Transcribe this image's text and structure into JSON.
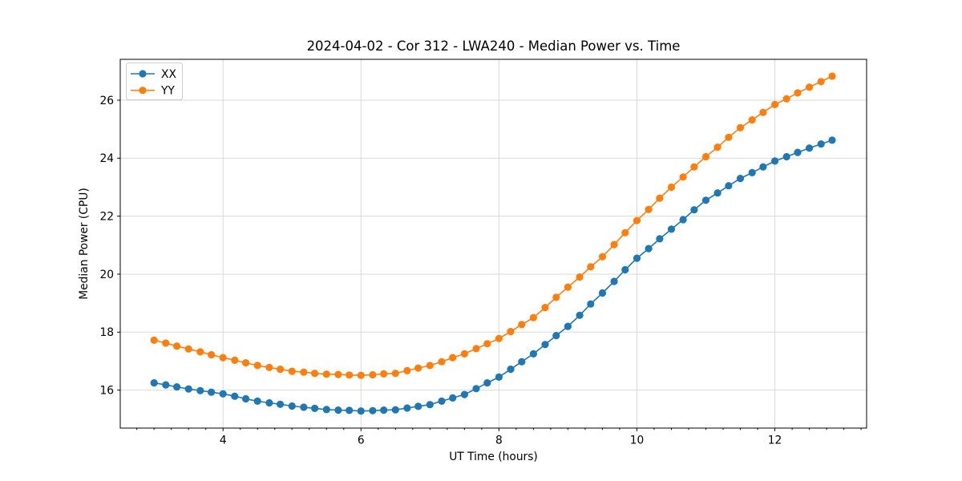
{
  "window": {
    "title": "2024-04-02 - Cor 312 - LWA240 - Median Power vs. Time"
  },
  "colors": {
    "series_xx": "#1f77b4",
    "series_yy": "#ff7f0e",
    "grid": "#d9d9d9",
    "spine": "#000000",
    "background": "#ffffff",
    "legend_border": "#cccccc"
  },
  "chart_data": {
    "type": "line",
    "title": "2024-04-02 - Cor 312 - LWA240 - Median Power vs. Time",
    "xlabel": "UT Time (hours)",
    "ylabel": "Median Power (CPU)",
    "xlim": [
      2.51,
      13.33
    ],
    "ylim": [
      14.69,
      27.41
    ],
    "xticks": [
      4,
      6,
      8,
      10,
      12
    ],
    "yticks": [
      16,
      18,
      20,
      22,
      24,
      26
    ],
    "minor_xtick_step": 0.25,
    "grid": true,
    "legend_position": "upper left",
    "marker": "circle",
    "x": [
      3,
      3.17,
      3.33,
      3.5,
      3.67,
      3.83,
      4,
      4.17,
      4.33,
      4.5,
      4.67,
      4.83,
      5,
      5.17,
      5.33,
      5.5,
      5.67,
      5.83,
      6,
      6.17,
      6.33,
      6.5,
      6.67,
      6.83,
      7,
      7.17,
      7.33,
      7.5,
      7.67,
      7.83,
      8,
      8.17,
      8.33,
      8.5,
      8.67,
      8.83,
      9,
      9.17,
      9.33,
      9.5,
      9.67,
      9.83,
      10,
      10.17,
      10.33,
      10.5,
      10.67,
      10.83,
      11,
      11.17,
      11.33,
      11.5,
      11.67,
      11.83,
      12,
      12.17,
      12.33,
      12.5,
      12.67,
      12.83
    ],
    "series": [
      {
        "name": "XX",
        "color": "#1f77b4",
        "values": [
          16.25,
          16.18,
          16.11,
          16.04,
          15.98,
          15.93,
          15.87,
          15.79,
          15.7,
          15.62,
          15.56,
          15.51,
          15.45,
          15.41,
          15.37,
          15.33,
          15.31,
          15.3,
          15.28,
          15.29,
          15.31,
          15.32,
          15.38,
          15.44,
          15.5,
          15.62,
          15.73,
          15.85,
          16.05,
          16.25,
          16.45,
          16.72,
          16.98,
          17.25,
          17.57,
          17.88,
          18.2,
          18.58,
          18.97,
          19.35,
          19.75,
          20.15,
          20.55,
          20.88,
          21.22,
          21.55,
          21.88,
          22.22,
          22.55,
          22.8,
          23.05,
          23.3,
          23.5,
          23.7,
          23.9,
          24.05,
          24.2,
          24.35,
          24.49,
          24.62
        ]
      },
      {
        "name": "YY",
        "color": "#ff7f0e",
        "values": [
          17.72,
          17.62,
          17.52,
          17.42,
          17.32,
          17.22,
          17.12,
          17.03,
          16.94,
          16.85,
          16.78,
          16.72,
          16.65,
          16.62,
          16.58,
          16.55,
          16.54,
          16.52,
          16.51,
          16.53,
          16.56,
          16.58,
          16.67,
          16.76,
          16.85,
          16.98,
          17.12,
          17.25,
          17.43,
          17.6,
          17.78,
          18.02,
          18.26,
          18.5,
          18.85,
          19.2,
          19.55,
          19.9,
          20.25,
          20.6,
          21.02,
          21.43,
          21.85,
          22.23,
          22.62,
          23.0,
          23.35,
          23.7,
          24.05,
          24.38,
          24.72,
          25.05,
          25.32,
          25.58,
          25.85,
          26.05,
          26.25,
          26.45,
          26.64,
          26.83
        ]
      }
    ]
  }
}
